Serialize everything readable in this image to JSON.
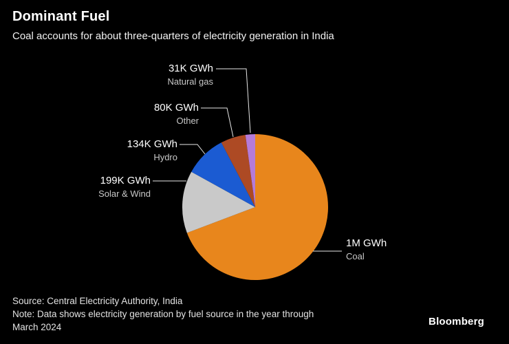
{
  "header": {
    "title": "Dominant Fuel",
    "subtitle": "Coal accounts for about three-quarters of electricity generation in India"
  },
  "chart_data": {
    "type": "pie",
    "title": "Dominant Fuel",
    "subtitle": "Coal accounts for about three-quarters of electricity generation in India",
    "unit": "GWh",
    "start_angle": "12-o-clock",
    "direction": "clockwise",
    "legend_position": "outside-labels-with-leader-lines",
    "slices": [
      {
        "name": "Coal",
        "value": 1000,
        "value_label": "1M GWh",
        "color": "#e8861c"
      },
      {
        "name": "Solar & Wind",
        "value": 199,
        "value_label": "199K GWh",
        "color": "#c9c9c9"
      },
      {
        "name": "Hydro",
        "value": 134,
        "value_label": "134K GWh",
        "color": "#1b5bd2"
      },
      {
        "name": "Other",
        "value": 80,
        "value_label": "80K GWh",
        "color": "#ad4a24"
      },
      {
        "name": "Natural gas",
        "value": 31,
        "value_label": "31K GWh",
        "color": "#b57bd9"
      }
    ]
  },
  "footer": {
    "source": "Source: Central Electricity Authority, India",
    "note_line1": "Note: Data shows electricity generation by fuel source in the year through",
    "note_line2": "March 2024",
    "brand": "Bloomberg"
  }
}
